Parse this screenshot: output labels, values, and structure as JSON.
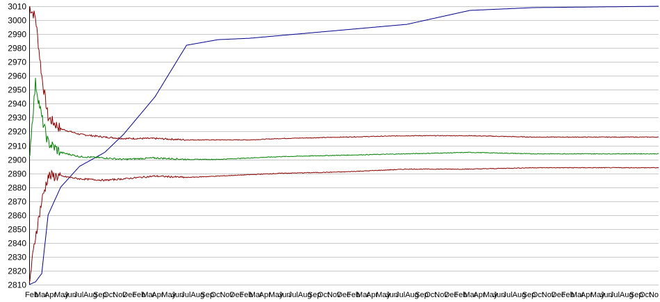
{
  "chart_data": {
    "type": "line",
    "title": "",
    "xlabel": "",
    "ylabel": "",
    "ylim": [
      2810,
      3010
    ],
    "yticks": [
      2810,
      2820,
      2830,
      2840,
      2850,
      2860,
      2870,
      2880,
      2890,
      2900,
      2910,
      2920,
      2930,
      2940,
      2950,
      2960,
      2970,
      2980,
      2990,
      3000,
      3010
    ],
    "grid": true,
    "legend": "none",
    "xticks": [
      "Feb",
      "Mar",
      "Apr",
      "May",
      "Jun",
      "Jul",
      "Aug",
      "Sep",
      "Oct",
      "Nov",
      "Dec",
      "Feb",
      "Mar",
      "Apr",
      "May",
      "Jun",
      "Jul",
      "Aug",
      "Sep",
      "Oct",
      "Nov",
      "Dec",
      "Feb",
      "Mar",
      "Apr",
      "May",
      "Jun",
      "Jul",
      "Aug",
      "Sep",
      "Oct",
      "Nov",
      "Dec",
      "Feb",
      "Mar",
      "Apr",
      "May",
      "Jun",
      "Jul",
      "Aug",
      "Sep",
      "Oct",
      "Nov",
      "Dec",
      "Feb",
      "Mar",
      "Apr",
      "May",
      "Jun",
      "Jul",
      "Aug",
      "Sep",
      "Oct",
      "Nov",
      "Dec",
      "Feb",
      "Mar",
      "Apr",
      "May",
      "Jun",
      "Jul",
      "Aug",
      "Sep",
      "Oct",
      "No"
    ],
    "x": [
      0,
      0.01,
      0.02,
      0.03,
      0.05,
      0.08,
      0.12,
      0.15,
      0.2,
      0.25,
      0.3,
      0.35,
      0.4,
      0.5,
      0.6,
      0.7,
      0.8,
      1.0
    ],
    "series": [
      {
        "color": "#00008b",
        "values": [
          2810,
          2812,
          2818,
          2860,
          2880,
          2895,
          2905,
          2918,
          2945,
          2982,
          2986,
          2987,
          2989,
          2993,
          2997,
          3007,
          3009,
          3010
        ]
      },
      {
        "color": "#8b0000",
        "values": [
          3010,
          3002,
          2960,
          2930,
          2922,
          2918,
          2916,
          2915,
          2915,
          2914,
          2914,
          2914,
          2915,
          2916,
          2917,
          2917,
          2916,
          2916
        ]
      },
      {
        "color": "#008000",
        "values": [
          2900,
          2955,
          2930,
          2912,
          2905,
          2902,
          2901,
          2900,
          2901,
          2900,
          2900,
          2901,
          2902,
          2903,
          2904,
          2905,
          2904,
          2904
        ]
      },
      {
        "color": "#8b0000",
        "values": [
          2810,
          2845,
          2870,
          2888,
          2888,
          2886,
          2885,
          2886,
          2888,
          2887,
          2888,
          2889,
          2890,
          2891,
          2893,
          2893,
          2894,
          2894
        ]
      }
    ]
  },
  "colors": {
    "grid": "#c8c8c8",
    "axis": "#000000",
    "background": "#ffffff"
  }
}
